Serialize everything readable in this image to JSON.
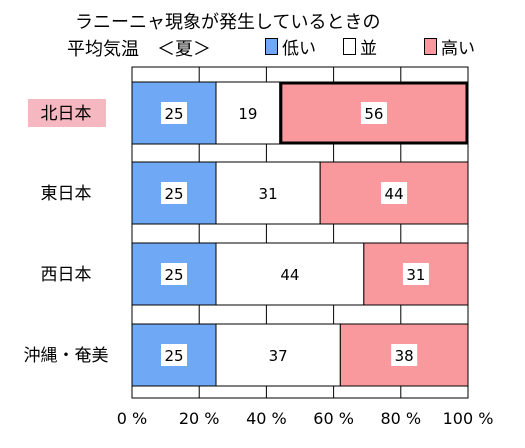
{
  "chart_data": {
    "type": "bar",
    "orientation": "horizontal",
    "stacked": true,
    "title_line1": "ラニーニャ現象が発生しているときの",
    "title_line2": "平均気温　＜夏＞",
    "categories": [
      "北日本",
      "東日本",
      "西日本",
      "沖縄・奄美"
    ],
    "highlighted_category": "北日本",
    "highlight_color": "#f5b8c0",
    "series": [
      {
        "name": "低い",
        "color": "#6fa9f5",
        "values": [
          25,
          25,
          25,
          25
        ]
      },
      {
        "name": "並",
        "color": "#ffffff",
        "values": [
          19,
          31,
          44,
          37
        ]
      },
      {
        "name": "高い",
        "color": "#f9989d",
        "values": [
          56,
          44,
          31,
          38
        ]
      }
    ],
    "emphasized_cell": {
      "category": "北日本",
      "series": "高い"
    },
    "xlim": [
      0,
      100
    ],
    "xticks": [
      "0 %",
      "20 %",
      "40 %",
      "60 %",
      "80 %",
      "100 %"
    ],
    "grid": true,
    "legend_position": "top-right"
  }
}
